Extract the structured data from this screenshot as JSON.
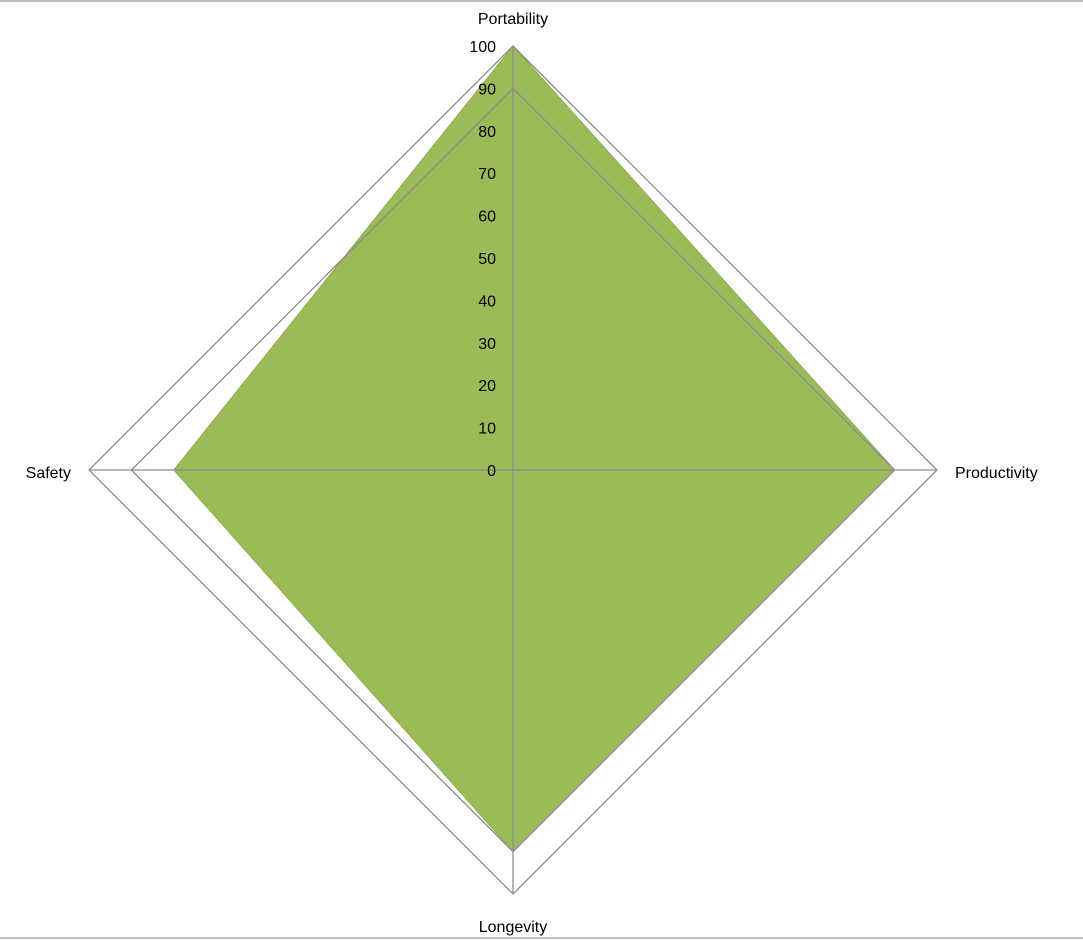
{
  "chart_data": {
    "type": "radar",
    "categories": [
      "Portability",
      "Productivity",
      "Longevity",
      "Safety"
    ],
    "series": [
      {
        "values": [
          100,
          90,
          90,
          80
        ],
        "color": "#9bbb59"
      }
    ],
    "rlim": [
      0,
      100
    ],
    "tick_values": [
      0,
      10,
      20,
      30,
      40,
      50,
      60,
      70,
      80,
      90,
      100
    ],
    "tick_labels": [
      "0",
      "10",
      "20",
      "30",
      "40",
      "50",
      "60",
      "70",
      "80",
      "90",
      "100"
    ],
    "grid_rings": [
      90,
      100
    ],
    "grid_color": "#8c8c8c",
    "legend": "none"
  }
}
